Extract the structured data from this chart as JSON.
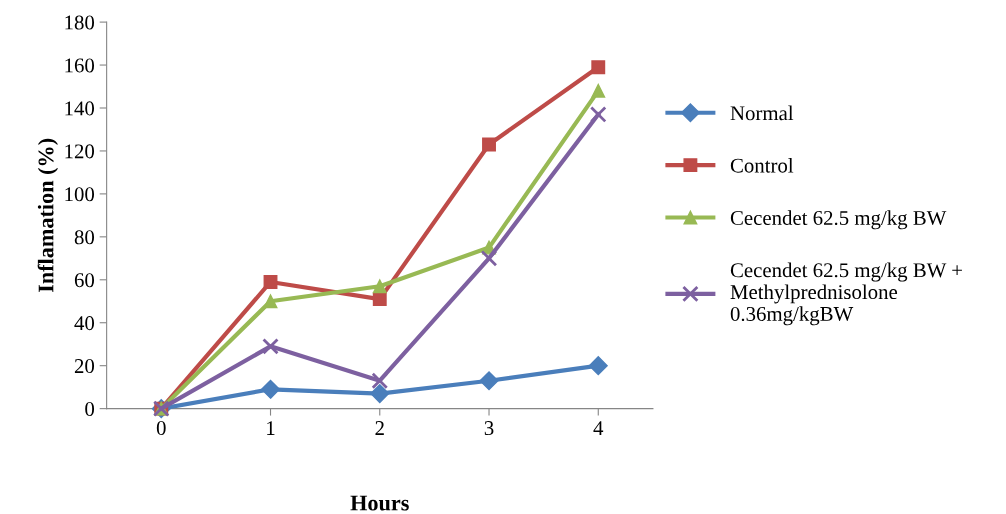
{
  "chart_data": {
    "type": "line",
    "xlabel": "Hours",
    "ylabel": "Inflamation (%)",
    "categories": [
      "0",
      "1",
      "2",
      "3",
      "4"
    ],
    "series": [
      {
        "name": "Normal",
        "color": "#4a7ebb",
        "marker": "diamond",
        "values": [
          0,
          9,
          7,
          13,
          20
        ]
      },
      {
        "name": "Control",
        "color": "#be4b48",
        "marker": "square",
        "values": [
          0,
          59,
          51,
          123,
          159
        ]
      },
      {
        "name": "Cecendet 62.5 mg/kg BW",
        "color": "#98b954",
        "marker": "triangle",
        "values": [
          0,
          50,
          57,
          75,
          148
        ]
      },
      {
        "name": "Cecendet 62.5 mg/kg BW +\nMethylprednisolone\n0.36mg/kgBW",
        "color": "#7d60a0",
        "marker": "cross",
        "values": [
          0,
          29,
          13,
          70,
          137
        ]
      }
    ],
    "ylim": [
      0,
      180
    ],
    "yticks": [
      0,
      20,
      40,
      60,
      80,
      100,
      120,
      140,
      160,
      180
    ],
    "grid": false,
    "legend": "right",
    "line_style": "solid"
  }
}
